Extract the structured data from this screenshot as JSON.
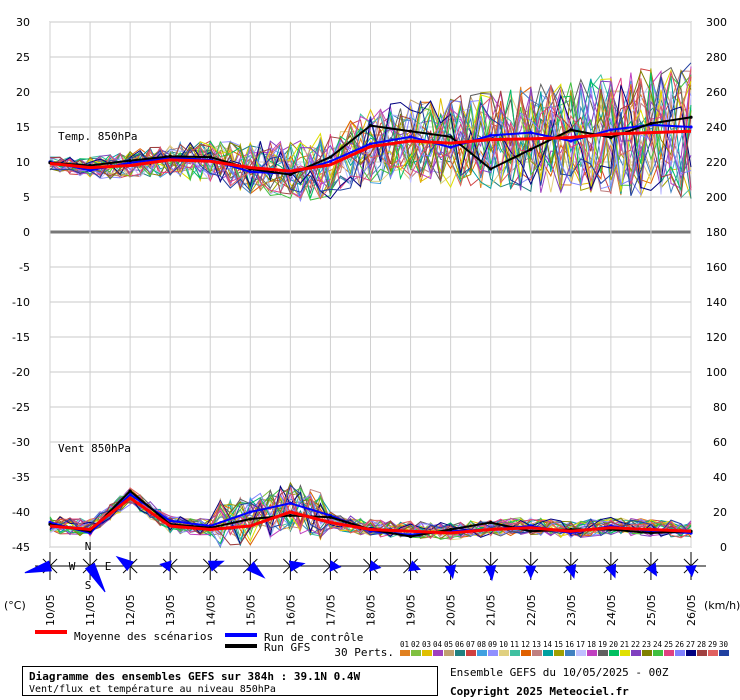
{
  "chart_data": [
    {
      "type": "line",
      "panel": "temperature",
      "label": "Temp. 850hPa",
      "y_left_ticks": [
        "30",
        "25",
        "20",
        "15",
        "10",
        "5",
        "0"
      ],
      "y_right_ticks": [
        "300",
        "280",
        "260",
        "240",
        "220",
        "200",
        "180"
      ],
      "ylim": [
        0,
        30
      ],
      "x": [
        "10/05",
        "11/05",
        "12/05",
        "13/05",
        "14/05",
        "15/05",
        "16/05",
        "17/05",
        "18/05",
        "19/05",
        "20/05",
        "21/05",
        "22/05",
        "23/05",
        "24/05",
        "25/05",
        "26/05"
      ],
      "series": [
        {
          "name": "Moyenne des scénarios",
          "color": "#ff0000",
          "values": [
            9.8,
            9.2,
            9.5,
            10.3,
            10.1,
            9.2,
            8.7,
            9.6,
            12.2,
            13.0,
            12.7,
            13.2,
            13.3,
            13.5,
            14.0,
            14.2,
            14.4
          ]
        },
        {
          "name": "Run de contrôle",
          "color": "#0000ff",
          "values": [
            10.0,
            8.8,
            9.9,
            10.6,
            10.3,
            8.6,
            8.3,
            10.1,
            12.6,
            13.6,
            12.1,
            13.8,
            14.2,
            13.0,
            14.6,
            15.3,
            15.0
          ]
        },
        {
          "name": "Run GFS",
          "color": "#000000",
          "values": [
            9.9,
            9.5,
            10.2,
            10.8,
            10.7,
            9.0,
            8.2,
            10.7,
            15.2,
            14.4,
            13.6,
            9.0,
            11.8,
            14.6,
            13.5,
            15.5,
            16.4
          ]
        }
      ]
    },
    {
      "type": "line",
      "panel": "wind",
      "label": "Vent 850hPa",
      "y_left_ticks": [
        "-5",
        "-10",
        "-15",
        "-20",
        "-25",
        "-30",
        "-35",
        "-40",
        "-45"
      ],
      "y_right_ticks": [
        "160",
        "140",
        "120",
        "100",
        "80",
        "60",
        "40",
        "20",
        "0"
      ],
      "ylim": [
        0,
        180
      ],
      "unit_left": "(°C)",
      "unit_right": "(km/h)",
      "x": [
        "10/05",
        "11/05",
        "12/05",
        "13/05",
        "14/05",
        "15/05",
        "16/05",
        "17/05",
        "18/05",
        "19/05",
        "20/05",
        "21/05",
        "22/05",
        "23/05",
        "24/05",
        "25/05",
        "26/05"
      ],
      "series": [
        {
          "name": "Moyenne des scénarios",
          "color": "#ff0000",
          "values": [
            12,
            10,
            28,
            12,
            10,
            12,
            20,
            14,
            10,
            9,
            8,
            10,
            11,
            9,
            11,
            10,
            9
          ]
        },
        {
          "name": "Run de contrôle",
          "color": "#0000ff",
          "values": [
            14,
            8,
            30,
            15,
            12,
            20,
            25,
            18,
            9,
            7,
            9,
            10,
            12,
            8,
            12,
            9,
            8
          ]
        },
        {
          "name": "Run GFS",
          "color": "#000000",
          "values": [
            13,
            9,
            32,
            13,
            11,
            16,
            18,
            17,
            10,
            6,
            10,
            14,
            9,
            10,
            10,
            8,
            9
          ]
        }
      ]
    }
  ],
  "wind_roses": {
    "compass": {
      "n": "N",
      "s": "S",
      "e": "E",
      "w": "W"
    },
    "directions_deg": [
      255,
      150,
      305,
      280,
      70,
      130,
      80,
      95,
      100,
      110,
      170,
      175,
      180,
      165,
      160,
      150,
      175
    ],
    "strengths": [
      26,
      30,
      16,
      10,
      14,
      18,
      14,
      10,
      10,
      10,
      12,
      14,
      12,
      12,
      12,
      11,
      10
    ]
  },
  "legend": {
    "mean": "Moyenne des scénarios",
    "control": "Run de contrôle",
    "gfs": "Run GFS",
    "perts_label": "30 Perts.",
    "pert_numbers": [
      "01",
      "02",
      "03",
      "04",
      "05",
      "06",
      "07",
      "08",
      "09",
      "10",
      "11",
      "12",
      "13",
      "14",
      "15",
      "16",
      "17",
      "18",
      "19",
      "20",
      "21",
      "22",
      "23",
      "24",
      "25",
      "26",
      "27",
      "28",
      "29",
      "30"
    ],
    "pert_colors": [
      "#e08020",
      "#80c040",
      "#e0c000",
      "#a040c0",
      "#c0a070",
      "#208080",
      "#d04040",
      "#40a0e0",
      "#9090ff",
      "#e0d080",
      "#40c0a0",
      "#e06000",
      "#c08080",
      "#00a0a0",
      "#a0a000",
      "#4080c0",
      "#c0c0ff",
      "#c040c0",
      "#606060",
      "#00c060",
      "#e0e000",
      "#8040c0",
      "#808000",
      "#40c040",
      "#e04080",
      "#8080ff",
      "#000080",
      "#a04040",
      "#e06060",
      "#2040a0"
    ]
  },
  "info": {
    "title": "Diagramme des ensembles GEFS sur 384h : 39.1N 0.4W",
    "subtitle": "Vent/flux et température au niveau 850hPa",
    "run": "Ensemble GEFS du 10/05/2025 - 00Z",
    "copyright": "Copyright 2025 Meteociel.fr"
  }
}
